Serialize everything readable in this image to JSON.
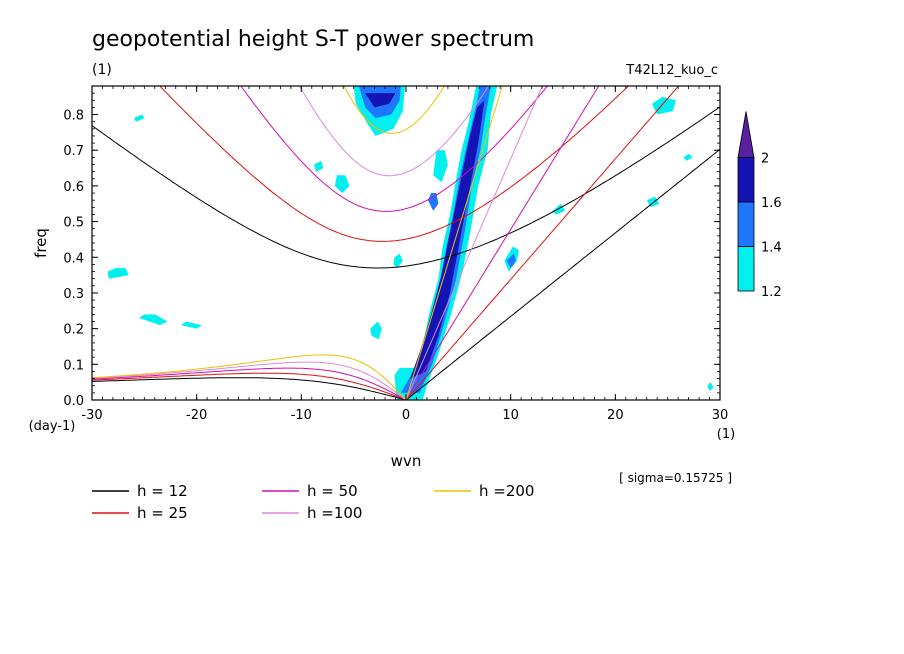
{
  "chart_data": {
    "type": "heatmap",
    "title": "geopotential height S-T power spectrum",
    "subtitle_left": "(1)",
    "subtitle_right": "T42L12_kuo_c",
    "xlabel": "wvn",
    "ylabel": "freq",
    "x_unit": "(1)",
    "y_unit": "(day-1)",
    "xlim": [
      -30,
      30
    ],
    "ylim": [
      0,
      0.88
    ],
    "x_ticks": [
      -30,
      -20,
      -10,
      0,
      10,
      20,
      30
    ],
    "x_tick_labels": [
      "-30",
      "-20",
      "-10",
      "0",
      "10",
      "20",
      "30"
    ],
    "y_ticks": [
      0,
      0.1,
      0.2,
      0.3,
      0.4,
      0.5,
      0.6,
      0.7,
      0.8
    ],
    "y_tick_labels": [
      "0.0",
      "0.1",
      "0.2",
      "0.3",
      "0.4",
      "0.5",
      "0.6",
      "0.7",
      "0.8"
    ],
    "annotation": "[ sigma=0.15725 ]",
    "colorbar": {
      "levels": [
        1.2,
        1.4,
        1.6,
        2
      ],
      "labels": [
        "1.2",
        "1.4",
        "1.6",
        "2"
      ],
      "colors": [
        "#00f0f0",
        "#1e78ff",
        "#1414b4",
        "#5a1ea0"
      ]
    },
    "dispersion_curves": [
      {
        "name": "h = 12",
        "h": 12,
        "color": "#000000"
      },
      {
        "name": "h = 25",
        "h": 25,
        "color": "#e01010"
      },
      {
        "name": "h = 50",
        "h": 50,
        "color": "#d010b0"
      },
      {
        "name": "h =100",
        "h": 100,
        "color": "#dd88dd"
      },
      {
        "name": "h =200",
        "h": 200,
        "color": "#f0c000"
      }
    ],
    "power_regions": [
      {
        "level": 1,
        "points": [
          [
            -0.9,
            0.0
          ],
          [
            -1.1,
            0.07
          ],
          [
            -0.6,
            0.09
          ],
          [
            0.8,
            0.09
          ],
          [
            1.5,
            0.14
          ],
          [
            2.2,
            0.24
          ],
          [
            3.1,
            0.34
          ],
          [
            3.5,
            0.43
          ],
          [
            4.2,
            0.52
          ],
          [
            4.8,
            0.62
          ],
          [
            5.3,
            0.7
          ],
          [
            6.0,
            0.78
          ],
          [
            6.7,
            0.88
          ],
          [
            8.7,
            0.88
          ],
          [
            8.1,
            0.8
          ],
          [
            7.8,
            0.7
          ],
          [
            6.9,
            0.6
          ],
          [
            6.2,
            0.48
          ],
          [
            5.4,
            0.36
          ],
          [
            4.3,
            0.24
          ],
          [
            3.0,
            0.12
          ],
          [
            2.0,
            0.04
          ],
          [
            1.6,
            0.0
          ]
        ]
      },
      {
        "level": 2,
        "points": [
          [
            -0.5,
            0.02
          ],
          [
            0.5,
            0.07
          ],
          [
            1.4,
            0.13
          ],
          [
            2.3,
            0.22
          ],
          [
            3.2,
            0.32
          ],
          [
            3.8,
            0.42
          ],
          [
            4.5,
            0.52
          ],
          [
            5.1,
            0.62
          ],
          [
            5.7,
            0.7
          ],
          [
            6.5,
            0.8
          ],
          [
            7.1,
            0.88
          ],
          [
            8.1,
            0.88
          ],
          [
            7.5,
            0.78
          ],
          [
            7.1,
            0.7
          ],
          [
            6.3,
            0.6
          ],
          [
            5.6,
            0.47
          ],
          [
            4.8,
            0.34
          ],
          [
            3.7,
            0.22
          ],
          [
            2.5,
            0.1
          ],
          [
            1.3,
            0.02
          ]
        ]
      },
      {
        "level": 3,
        "points": [
          [
            0.4,
            0.06
          ],
          [
            1.5,
            0.15
          ],
          [
            2.4,
            0.24
          ],
          [
            3.3,
            0.34
          ],
          [
            4.0,
            0.44
          ],
          [
            4.7,
            0.54
          ],
          [
            5.4,
            0.64
          ],
          [
            6.1,
            0.74
          ],
          [
            6.8,
            0.82
          ],
          [
            7.5,
            0.84
          ],
          [
            6.9,
            0.72
          ],
          [
            6.0,
            0.58
          ],
          [
            5.1,
            0.44
          ],
          [
            4.2,
            0.3
          ],
          [
            3.1,
            0.18
          ],
          [
            1.9,
            0.08
          ]
        ]
      },
      {
        "level": 1,
        "points": [
          [
            -5.0,
            0.88
          ],
          [
            -4.8,
            0.83
          ],
          [
            -3.8,
            0.78
          ],
          [
            -2.9,
            0.74
          ],
          [
            -1.2,
            0.76
          ],
          [
            -0.3,
            0.81
          ],
          [
            -0.1,
            0.88
          ]
        ]
      },
      {
        "level": 2,
        "points": [
          [
            -4.5,
            0.88
          ],
          [
            -3.9,
            0.82
          ],
          [
            -2.9,
            0.79
          ],
          [
            -1.4,
            0.8
          ],
          [
            -0.6,
            0.84
          ],
          [
            -0.5,
            0.88
          ]
        ]
      },
      {
        "level": 3,
        "points": [
          [
            -3.9,
            0.86
          ],
          [
            -3.0,
            0.82
          ],
          [
            -1.6,
            0.83
          ],
          [
            -1.0,
            0.86
          ]
        ]
      },
      {
        "level": 1,
        "points": [
          [
            -3.3,
            0.18
          ],
          [
            -3.4,
            0.2
          ],
          [
            -2.7,
            0.22
          ],
          [
            -2.3,
            0.2
          ],
          [
            -2.6,
            0.17
          ]
        ]
      },
      {
        "level": 1,
        "points": [
          [
            -6.6,
            0.63
          ],
          [
            -6.8,
            0.6
          ],
          [
            -6.1,
            0.58
          ],
          [
            -5.4,
            0.6
          ],
          [
            -5.8,
            0.63
          ]
        ]
      },
      {
        "level": 1,
        "points": [
          [
            2.9,
            0.7
          ],
          [
            2.6,
            0.63
          ],
          [
            3.4,
            0.61
          ],
          [
            4.0,
            0.66
          ],
          [
            3.7,
            0.7
          ]
        ]
      },
      {
        "level": 2,
        "points": [
          [
            2.4,
            0.58
          ],
          [
            2.1,
            0.56
          ],
          [
            2.6,
            0.53
          ],
          [
            3.1,
            0.55
          ],
          [
            2.9,
            0.58
          ]
        ]
      },
      {
        "level": 1,
        "points": [
          [
            9.4,
            0.39
          ],
          [
            9.8,
            0.36
          ],
          [
            10.6,
            0.39
          ],
          [
            10.8,
            0.42
          ],
          [
            10.2,
            0.43
          ]
        ]
      },
      {
        "level": 2,
        "points": [
          [
            9.6,
            0.39
          ],
          [
            10.0,
            0.37
          ],
          [
            10.5,
            0.39
          ],
          [
            10.3,
            0.41
          ]
        ]
      },
      {
        "level": 1,
        "points": [
          [
            -1.2,
            0.38
          ],
          [
            -0.8,
            0.37
          ],
          [
            -0.3,
            0.39
          ],
          [
            -0.6,
            0.41
          ],
          [
            -1.1,
            0.4
          ]
        ]
      },
      {
        "level": 1,
        "points": [
          [
            23.5,
            0.83
          ],
          [
            24.0,
            0.8
          ],
          [
            25.5,
            0.81
          ],
          [
            25.8,
            0.84
          ],
          [
            24.5,
            0.85
          ]
        ]
      },
      {
        "level": 1,
        "points": [
          [
            -27.7,
            0.37
          ],
          [
            -28.5,
            0.36
          ],
          [
            -28.4,
            0.34
          ],
          [
            -26.5,
            0.35
          ],
          [
            -26.8,
            0.37
          ]
        ]
      },
      {
        "level": 1,
        "points": [
          [
            -25.0,
            0.24
          ],
          [
            -25.5,
            0.23
          ],
          [
            -23.5,
            0.21
          ],
          [
            -22.8,
            0.22
          ],
          [
            -24.0,
            0.24
          ]
        ]
      },
      {
        "level": 1,
        "points": [
          [
            -21.0,
            0.22
          ],
          [
            -21.5,
            0.21
          ],
          [
            -20.0,
            0.2
          ],
          [
            -19.5,
            0.21
          ]
        ]
      },
      {
        "level": 1,
        "points": [
          [
            -8.8,
            0.66
          ],
          [
            -8.6,
            0.64
          ],
          [
            -7.9,
            0.65
          ],
          [
            -8.1,
            0.67
          ]
        ]
      },
      {
        "level": 1,
        "points": [
          [
            -26.0,
            0.79
          ],
          [
            -25.8,
            0.78
          ],
          [
            -25.0,
            0.79
          ],
          [
            -25.2,
            0.8
          ]
        ]
      },
      {
        "level": 1,
        "points": [
          [
            14.0,
            0.53
          ],
          [
            14.3,
            0.52
          ],
          [
            15.2,
            0.53
          ],
          [
            14.8,
            0.55
          ]
        ]
      },
      {
        "level": 1,
        "points": [
          [
            23.0,
            0.56
          ],
          [
            23.4,
            0.54
          ],
          [
            24.2,
            0.55
          ],
          [
            23.8,
            0.57
          ]
        ]
      },
      {
        "level": 1,
        "points": [
          [
            26.5,
            0.68
          ],
          [
            26.8,
            0.67
          ],
          [
            27.4,
            0.68
          ],
          [
            27.0,
            0.69
          ]
        ]
      },
      {
        "level": 1,
        "points": [
          [
            28.8,
            0.04
          ],
          [
            29.0,
            0.025
          ],
          [
            29.4,
            0.035
          ],
          [
            29.1,
            0.05
          ]
        ]
      }
    ]
  }
}
